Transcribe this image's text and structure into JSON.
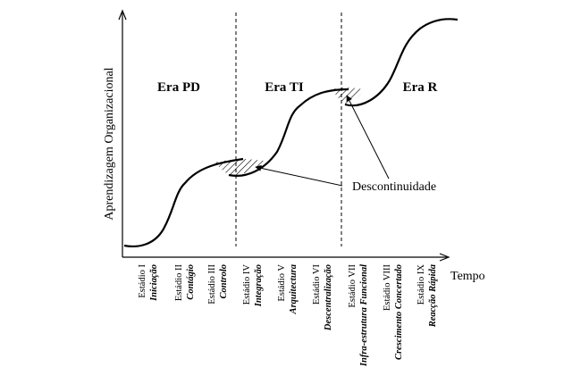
{
  "diagram": {
    "y_axis_label": "Aprendizagem Organizacional",
    "x_axis_label": "Tempo",
    "eras": [
      "Era PD",
      "Era TI",
      "Era R"
    ],
    "annotation": "Descontinuidade",
    "stages": [
      {
        "name": "Estádio I",
        "desc": "Iniciação"
      },
      {
        "name": "Estádio II",
        "desc": "Contágio"
      },
      {
        "name": "Estádio III",
        "desc": "Controlo"
      },
      {
        "name": "Estádio IV",
        "desc": "Integração"
      },
      {
        "name": "Estádio V",
        "desc": "Arquitectura"
      },
      {
        "name": "Estádio VI",
        "desc": "Descentralização"
      },
      {
        "name": "Estádio VII",
        "desc": "Infra-estrutura Funcional"
      },
      {
        "name": "Estádio VIII",
        "desc": "Crescimento Concertado"
      },
      {
        "name": "Estádio IX",
        "desc": "Reacção Rápida"
      }
    ]
  }
}
